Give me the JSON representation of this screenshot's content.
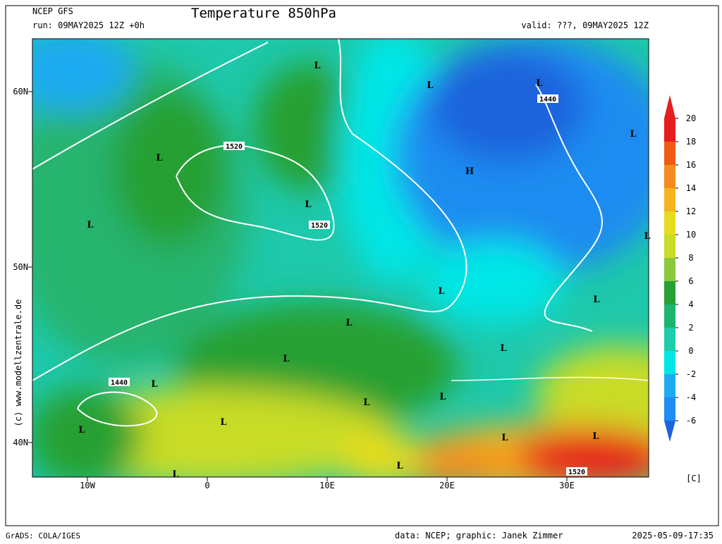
{
  "header": {
    "model": "NCEP GFS",
    "run": "run: 09MAY2025 12Z +0h",
    "title": "Temperature 850hPa",
    "valid": "valid: ???, 09MAY2025 12Z"
  },
  "axes": {
    "lat_labels": [
      "60N",
      "50N",
      "40N"
    ],
    "lon_labels": [
      "10W",
      "0",
      "10E",
      "20E",
      "30E"
    ]
  },
  "map": {
    "labels": [
      "L",
      "L",
      "L",
      "L",
      "L",
      "H",
      "L",
      "L",
      "L",
      "L",
      "L",
      "L",
      "L",
      "L",
      "L",
      "L",
      "L",
      "L",
      "L",
      "L",
      "L",
      "L",
      "L"
    ],
    "contour_labels": [
      "1520",
      "1520",
      "1440",
      "1440",
      "1520"
    ]
  },
  "colorbar": {
    "ticks": [
      20,
      18,
      16,
      14,
      12,
      10,
      8,
      6,
      4,
      2,
      0,
      -2,
      -4,
      -6
    ],
    "colors": [
      "#e61e1e",
      "#f05a14",
      "#f58c1e",
      "#f5b41e",
      "#e6dc1e",
      "#c8dc28",
      "#8cc83c",
      "#28a032",
      "#1eb46e",
      "#1ecdaa",
      "#00e6e6",
      "#1eaaf0",
      "#1e8cf0",
      "#1e64dc"
    ],
    "unit": "[C]"
  },
  "credit": "(c) www.modellzentrale.de",
  "footer": {
    "left": "GrADS: COLA/IGES",
    "middle": "data: NCEP; graphic: Janek Zimmer",
    "right": "2025-05-09-17:35"
  }
}
